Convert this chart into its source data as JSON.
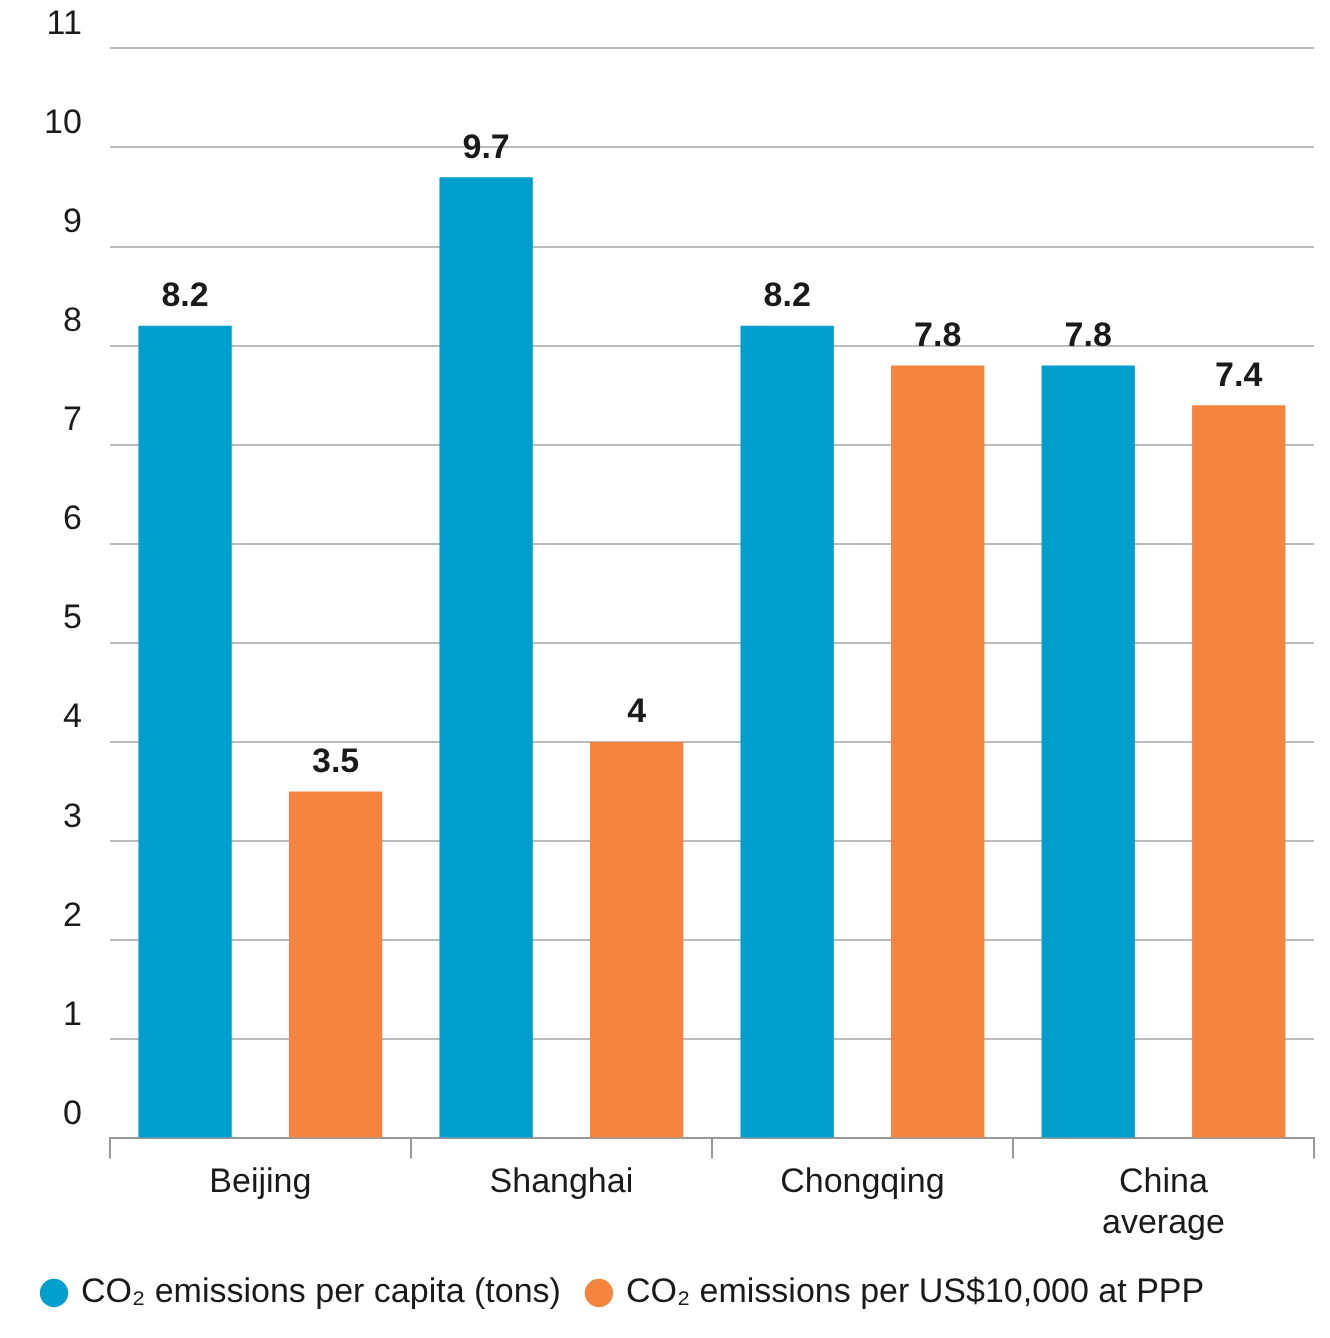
{
  "chart_data": {
    "type": "bar",
    "categories": [
      "Beijing",
      "Shanghai",
      "Chongqing",
      "China average"
    ],
    "series": [
      {
        "name": "CO₂ emissions per capita (tons)",
        "color": "#009fcd",
        "values": [
          8.2,
          9.7,
          8.2,
          7.8
        ]
      },
      {
        "name": "CO₂ emissions per US$10,000 at PPP",
        "color": "#f5843e",
        "values": [
          3.5,
          4,
          7.8,
          7.4
        ]
      }
    ],
    "ylim": [
      0,
      11
    ],
    "yticks": [
      0,
      1,
      2,
      3,
      4,
      5,
      6,
      7,
      8,
      9,
      10,
      11
    ],
    "grid": "y",
    "legend": "bottom",
    "data_labels": true
  }
}
